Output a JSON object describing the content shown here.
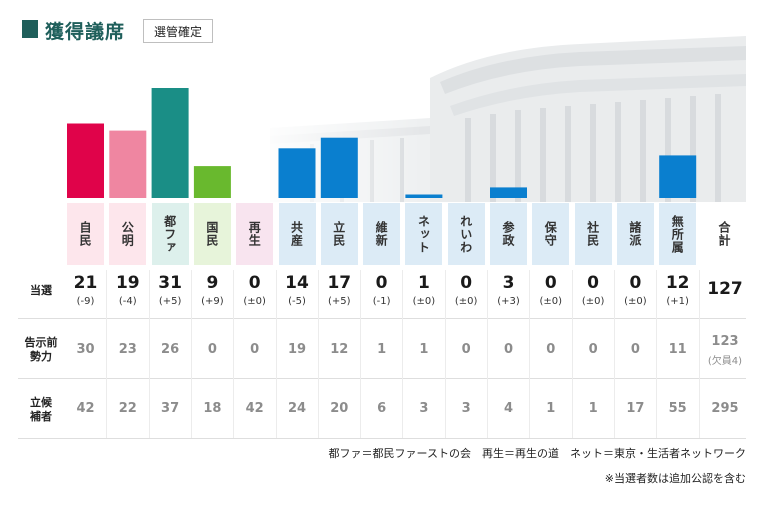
{
  "header": {
    "title": "獲得議席",
    "badge": "選管確定"
  },
  "row_labels": {
    "seats": "当選",
    "previous": "告示前\n勢力",
    "candidates": "立候\n補者"
  },
  "total_label": "合計",
  "notes": {
    "line1": "都ファ＝都民ファーストの会　再生＝再生の道　ネット＝東京・生活者ネットワーク",
    "line2": "※当選者数は追加公認を含む"
  },
  "colors": {
    "title": "#1f5f5b",
    "grey_text": "#8c8c8c"
  },
  "chart_data": {
    "type": "bar",
    "categories": [
      "自民",
      "公明",
      "都ファ",
      "国民",
      "再生",
      "共産",
      "立民",
      "維新",
      "ネット",
      "れいわ",
      "参政",
      "保守",
      "社民",
      "諸派",
      "無所属"
    ],
    "values": [
      21,
      19,
      31,
      9,
      0,
      14,
      17,
      0,
      1,
      0,
      3,
      0,
      0,
      0,
      12
    ],
    "change": [
      "(-9)",
      "(-4)",
      "(+5)",
      "(+9)",
      "(±0)",
      "(-5)",
      "(+5)",
      "(-1)",
      "(±0)",
      "(±0)",
      "(+3)",
      "(±0)",
      "(±0)",
      "(±0)",
      "(+1)"
    ],
    "previous": [
      "30",
      "23",
      "26",
      "0",
      "0",
      "19",
      "12",
      "1",
      "1",
      "0",
      "0",
      "0",
      "0",
      "0",
      "11"
    ],
    "candidates": [
      "42",
      "22",
      "37",
      "18",
      "42",
      "24",
      "20",
      "6",
      "3",
      "3",
      "4",
      "1",
      "1",
      "17",
      "55"
    ],
    "bar_colors": [
      "#e0034a",
      "#ef86a1",
      "#1a8e86",
      "#69b92e",
      "#e0034a",
      "#0a7fcf",
      "#0a7fcf",
      "#0a7fcf",
      "#0a7fcf",
      "#0a7fcf",
      "#0a7fcf",
      "#0a7fcf",
      "#0a7fcf",
      "#0a7fcf",
      "#0a7fcf"
    ],
    "cell_colors": [
      "#fde6ec",
      "#fde6ec",
      "#ddf0ec",
      "#e7f4da",
      "#f8e4ef",
      "#dcebf6",
      "#dcebf6",
      "#dcebf6",
      "#dcebf6",
      "#dcebf6",
      "#dcebf6",
      "#dcebf6",
      "#dcebf6",
      "#dcebf6",
      "#dcebf6"
    ],
    "total": {
      "seats": "127",
      "previous": "123",
      "previous_note": "(欠員4)",
      "candidates": "295"
    },
    "ylim": [
      0,
      31
    ]
  }
}
